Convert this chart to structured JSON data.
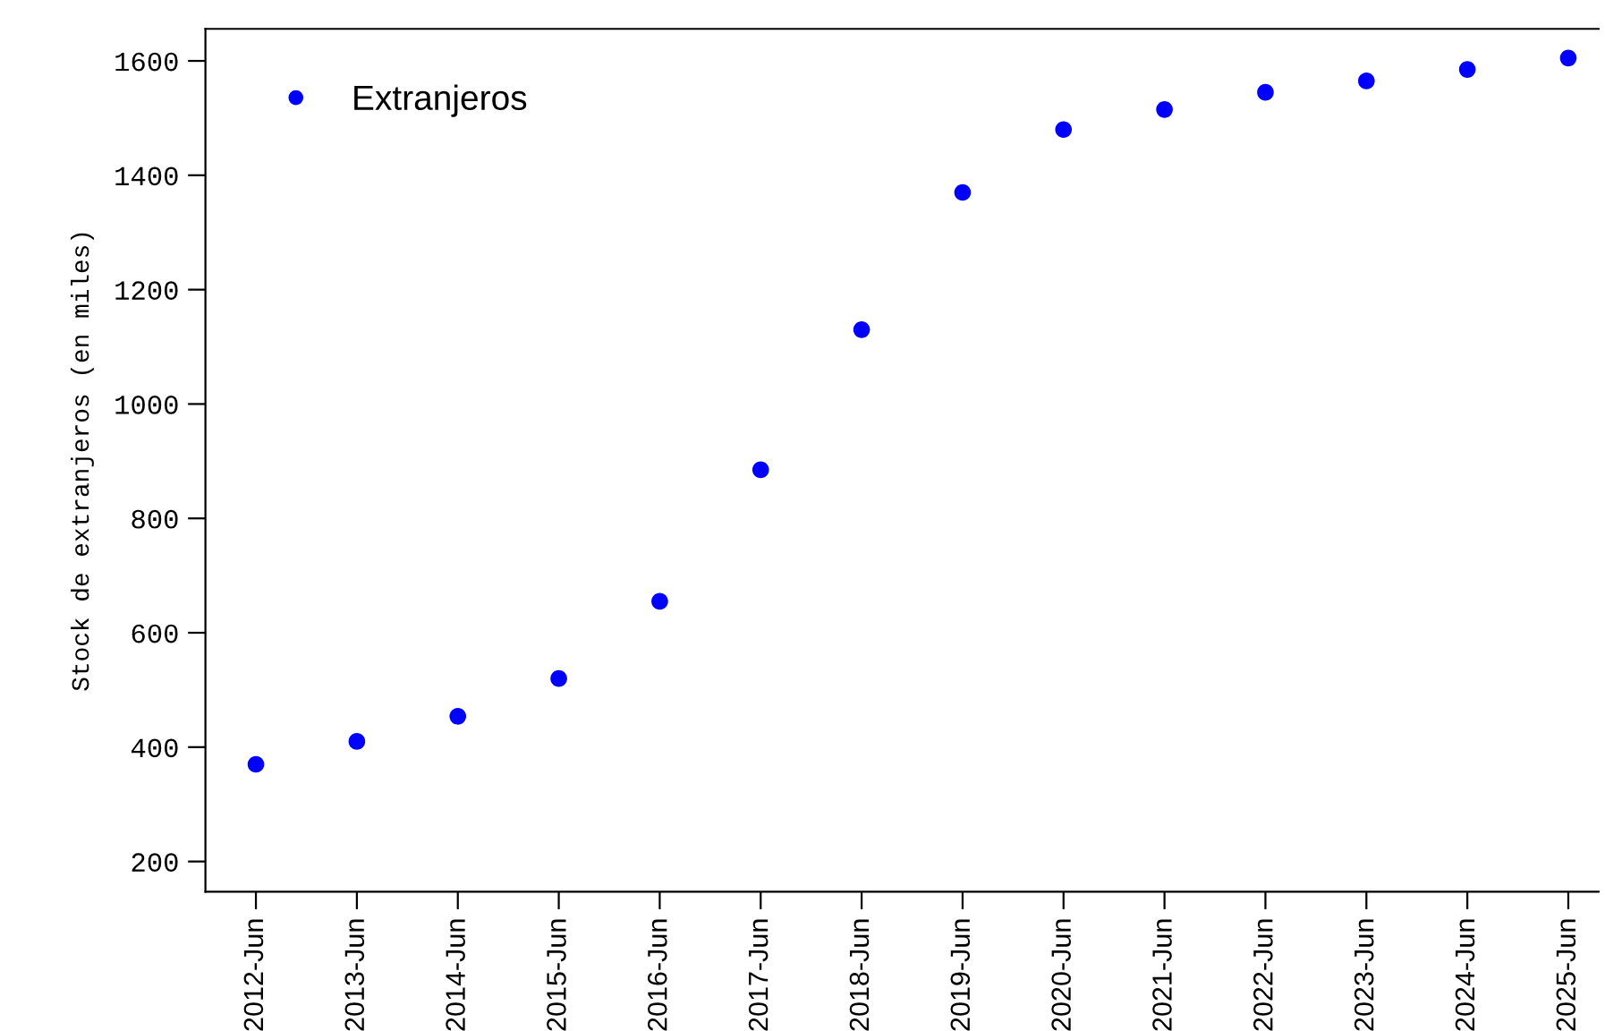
{
  "chart_data": {
    "type": "scatter",
    "ylabel": "Stock de extranjeros (en miles)",
    "categories": [
      "2012-Jun",
      "2013-Jun",
      "2014-Jun",
      "2015-Jun",
      "2016-Jun",
      "2017-Jun",
      "2018-Jun",
      "2019-Jun",
      "2020-Jun",
      "2021-Jun",
      "2022-Jun",
      "2023-Jun",
      "2024-Jun",
      "2025-Jun"
    ],
    "series": [
      {
        "name": "Extranjeros",
        "color": "#0000ff",
        "values": [
          370,
          410,
          454,
          520,
          655,
          885,
          1130,
          1370,
          1480,
          1515,
          1545,
          1565,
          1585,
          1605
        ]
      }
    ],
    "ylim": [
      147,
      1656
    ],
    "yticks": [
      200,
      400,
      600,
      800,
      1000,
      1200,
      1400,
      1600
    ],
    "marker": "circle",
    "legend": "top left",
    "grid": false
  }
}
